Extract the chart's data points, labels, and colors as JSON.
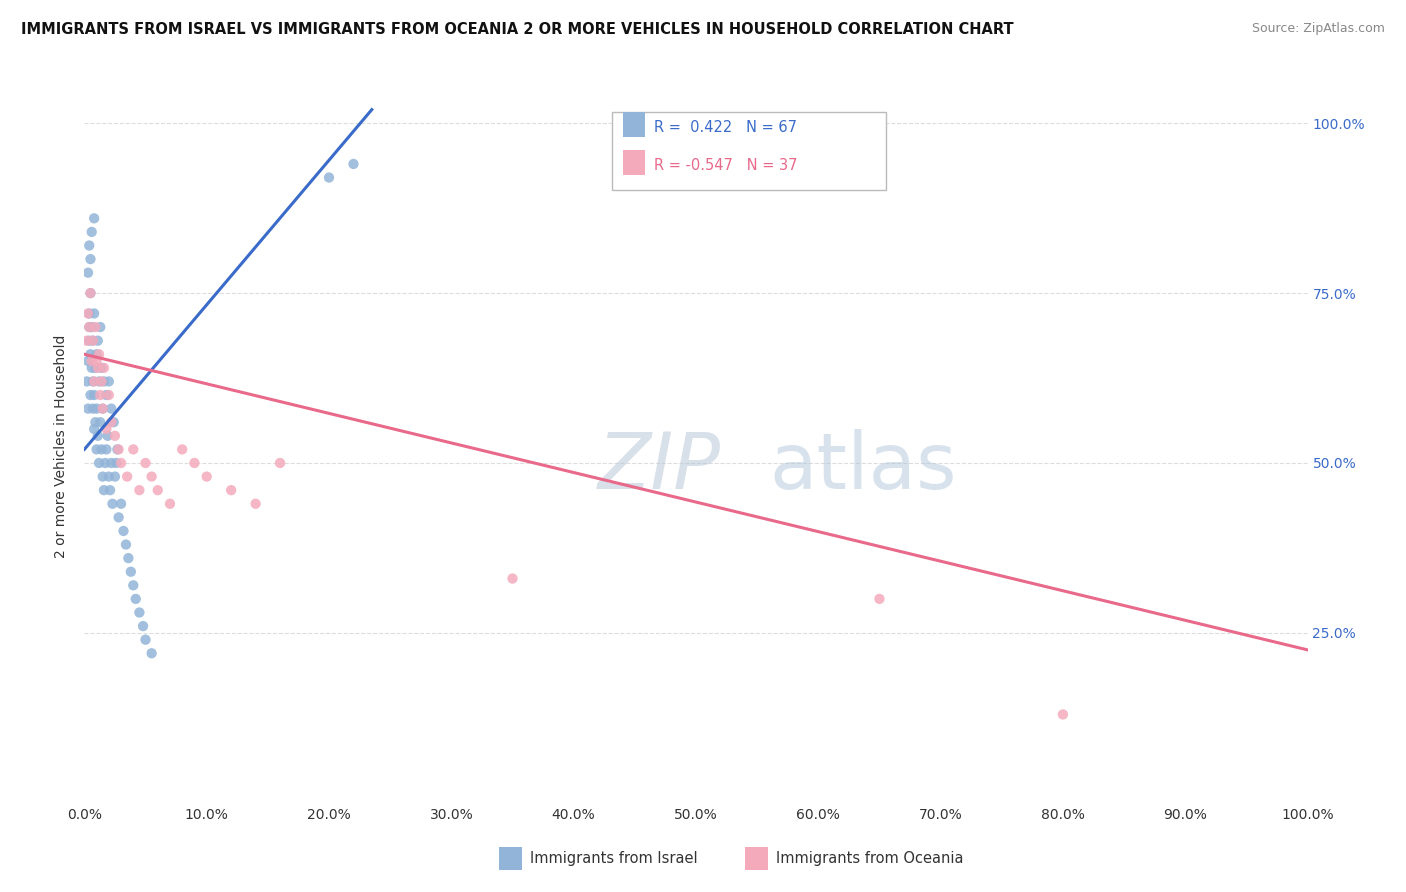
{
  "title": "IMMIGRANTS FROM ISRAEL VS IMMIGRANTS FROM OCEANIA 2 OR MORE VEHICLES IN HOUSEHOLD CORRELATION CHART",
  "source": "Source: ZipAtlas.com",
  "ylabel": "2 or more Vehicles in Household",
  "legend_label_blue": "Immigrants from Israel",
  "legend_label_pink": "Immigrants from Oceania",
  "legend_R_blue": "R =  0.422",
  "legend_N_blue": "N = 67",
  "legend_R_pink": "R = -0.547",
  "legend_N_pink": "N = 37",
  "color_blue": "#92B4D8",
  "color_pink": "#F4AABB",
  "color_blue_line": "#3A6BC9",
  "color_pink_line": "#E8698A",
  "watermark_ZIP_color": "#C8D8E8",
  "watermark_atlas_color": "#A8C4DC",
  "blue_scatter_x": [
    0.002,
    0.003,
    0.003,
    0.004,
    0.004,
    0.004,
    0.005,
    0.005,
    0.005,
    0.006,
    0.006,
    0.007,
    0.007,
    0.007,
    0.008,
    0.008,
    0.008,
    0.009,
    0.009,
    0.01,
    0.01,
    0.01,
    0.011,
    0.011,
    0.012,
    0.012,
    0.013,
    0.013,
    0.014,
    0.014,
    0.015,
    0.015,
    0.016,
    0.016,
    0.017,
    0.018,
    0.018,
    0.019,
    0.02,
    0.02,
    0.021,
    0.022,
    0.022,
    0.023,
    0.024,
    0.025,
    0.026,
    0.027,
    0.028,
    0.03,
    0.032,
    0.034,
    0.036,
    0.038,
    0.04,
    0.042,
    0.045,
    0.048,
    0.05,
    0.055,
    0.003,
    0.004,
    0.005,
    0.006,
    0.008,
    0.2,
    0.22
  ],
  "blue_scatter_y": [
    0.62,
    0.58,
    0.65,
    0.7,
    0.72,
    0.68,
    0.6,
    0.75,
    0.66,
    0.64,
    0.7,
    0.58,
    0.62,
    0.68,
    0.55,
    0.6,
    0.72,
    0.56,
    0.64,
    0.52,
    0.58,
    0.66,
    0.54,
    0.68,
    0.5,
    0.62,
    0.56,
    0.7,
    0.52,
    0.64,
    0.48,
    0.58,
    0.46,
    0.62,
    0.5,
    0.52,
    0.6,
    0.54,
    0.48,
    0.62,
    0.46,
    0.5,
    0.58,
    0.44,
    0.56,
    0.48,
    0.5,
    0.52,
    0.42,
    0.44,
    0.4,
    0.38,
    0.36,
    0.34,
    0.32,
    0.3,
    0.28,
    0.26,
    0.24,
    0.22,
    0.78,
    0.82,
    0.8,
    0.84,
    0.86,
    0.92,
    0.94
  ],
  "pink_scatter_x": [
    0.002,
    0.003,
    0.004,
    0.005,
    0.006,
    0.007,
    0.008,
    0.009,
    0.01,
    0.011,
    0.012,
    0.013,
    0.014,
    0.015,
    0.016,
    0.018,
    0.02,
    0.022,
    0.025,
    0.028,
    0.03,
    0.035,
    0.04,
    0.045,
    0.05,
    0.055,
    0.06,
    0.07,
    0.08,
    0.09,
    0.1,
    0.12,
    0.14,
    0.16,
    0.35,
    0.65,
    0.8
  ],
  "pink_scatter_y": [
    0.68,
    0.72,
    0.7,
    0.75,
    0.65,
    0.68,
    0.62,
    0.7,
    0.65,
    0.64,
    0.66,
    0.6,
    0.62,
    0.58,
    0.64,
    0.55,
    0.6,
    0.56,
    0.54,
    0.52,
    0.5,
    0.48,
    0.52,
    0.46,
    0.5,
    0.48,
    0.46,
    0.44,
    0.52,
    0.5,
    0.48,
    0.46,
    0.44,
    0.5,
    0.33,
    0.3,
    0.13
  ],
  "blue_line_x": [
    0.0,
    0.235
  ],
  "blue_line_y": [
    0.52,
    1.02
  ],
  "pink_line_x": [
    0.0,
    1.0
  ],
  "pink_line_y": [
    0.66,
    0.225
  ],
  "xlim": [
    0.0,
    1.0
  ],
  "ylim": [
    0.0,
    1.05
  ],
  "xticks": [
    0.0,
    0.1,
    0.2,
    0.3,
    0.4,
    0.5,
    0.6,
    0.7,
    0.8,
    0.9,
    1.0
  ],
  "xticklabels": [
    "0.0%",
    "10.0%",
    "20.0%",
    "30.0%",
    "40.0%",
    "50.0%",
    "60.0%",
    "70.0%",
    "80.0%",
    "90.0%",
    "100.0%"
  ],
  "yticks_right": [
    0.25,
    0.5,
    0.75,
    1.0
  ],
  "yticklabels_right": [
    "25.0%",
    "50.0%",
    "75.0%",
    "100.0%"
  ],
  "background_color": "#FFFFFF",
  "grid_color": "#DDDDDD"
}
